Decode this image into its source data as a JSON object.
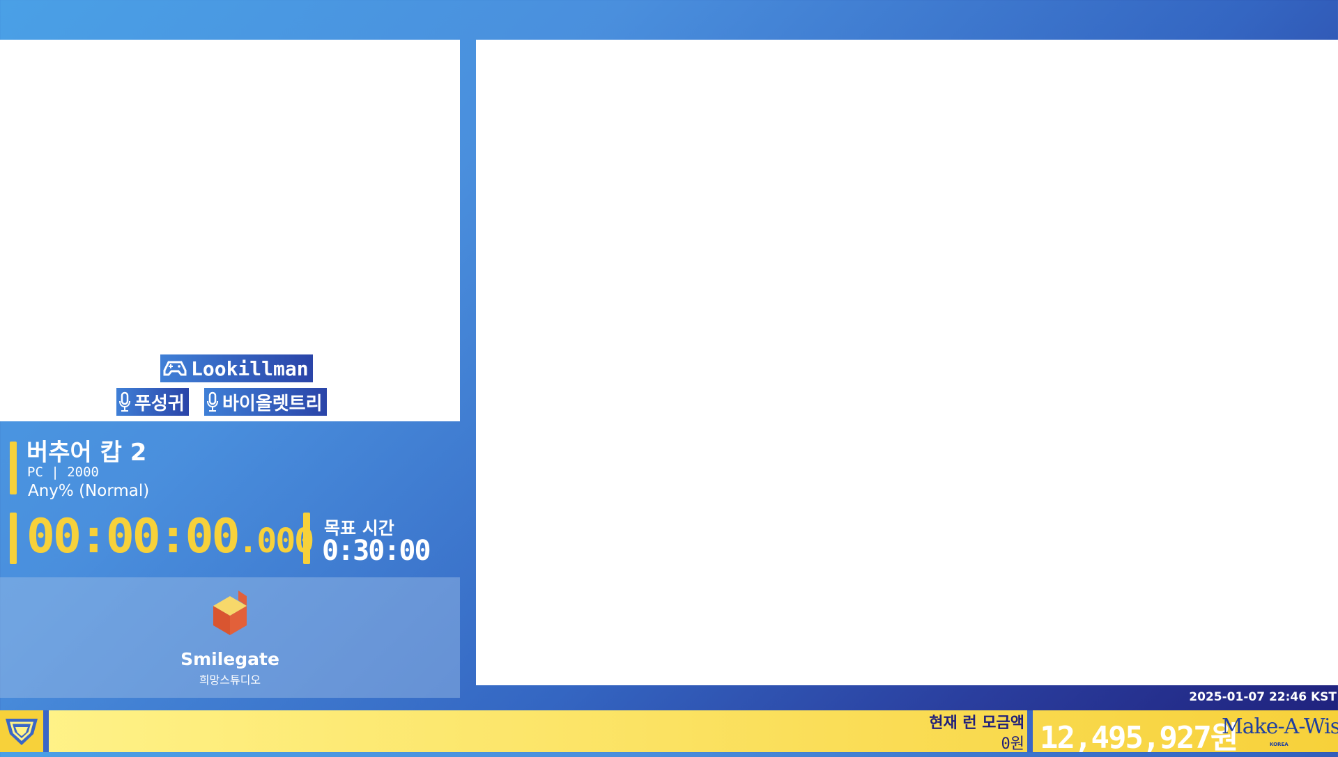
{
  "runner": {
    "name": "Lookillman",
    "icon": "gamepad-icon"
  },
  "commentators": [
    {
      "name": "푸성귀",
      "icon": "microphone-icon"
    },
    {
      "name": "바이올렛트리",
      "icon": "microphone-icon"
    }
  ],
  "game": {
    "title": "버추어 캅 2",
    "meta": "PC | 2000",
    "category": "Any% (Normal)"
  },
  "timer": {
    "main": "00:00:00",
    "ms": ".000"
  },
  "goal": {
    "label": "목표 시간",
    "time": "0:30:00"
  },
  "sponsor": {
    "name": "Smilegate",
    "sub": "희망스튜디오",
    "icon": "smilegate-logo-icon"
  },
  "clock": "2025-01-07 22:46 KST",
  "donation": {
    "run_label": "현재 런 모금액",
    "run_value": "0원",
    "total": "12,495,927원",
    "charity": "Make-A-Wish.",
    "charity_sub": "KOREA"
  },
  "colors": {
    "accent": "#f7d13a",
    "navy": "#1f1f7a",
    "blue": "#3a66c6"
  }
}
